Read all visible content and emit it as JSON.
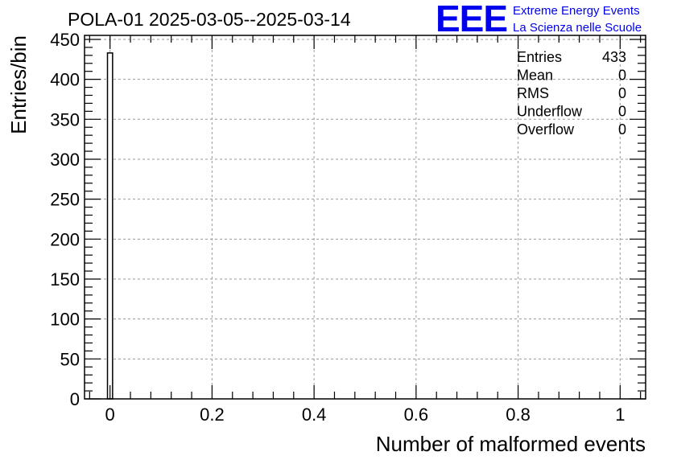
{
  "chart_data": {
    "type": "bar",
    "title": "POLA-01 2025-03-05--2025-03-14",
    "xlabel": "Number of malformed events",
    "ylabel": "Entries/bin",
    "xlim": [
      -0.05,
      1.05
    ],
    "ylim": [
      0,
      455
    ],
    "x_ticks": [
      0,
      0.2,
      0.4,
      0.6,
      0.8,
      1
    ],
    "x_tick_labels": [
      "0",
      "0.2",
      "0.4",
      "0.6",
      "0.8",
      "1"
    ],
    "y_ticks": [
      0,
      50,
      100,
      150,
      200,
      250,
      300,
      350,
      400,
      450
    ],
    "y_tick_labels": [
      "0",
      "50",
      "100",
      "150",
      "200",
      "250",
      "300",
      "350",
      "400",
      "450"
    ],
    "grid": true,
    "bins": [
      {
        "low": -0.005,
        "high": 0.005,
        "value": 433
      }
    ],
    "stats": [
      {
        "label": "Entries",
        "value": "433"
      },
      {
        "label": "Mean",
        "value": "0"
      },
      {
        "label": "RMS",
        "value": "0"
      },
      {
        "label": "Underflow",
        "value": "0"
      },
      {
        "label": "Overflow",
        "value": "0"
      }
    ]
  },
  "logo": {
    "mark": "EEE",
    "line1": "Extreme Energy Events",
    "line2": "La Scienza nelle Scuole",
    "color": "#0000ee"
  },
  "colors": {
    "axis": "#000000",
    "grid": "#9a9a9a",
    "bar_stroke": "#000000",
    "bar_fill": "#ffffff"
  }
}
